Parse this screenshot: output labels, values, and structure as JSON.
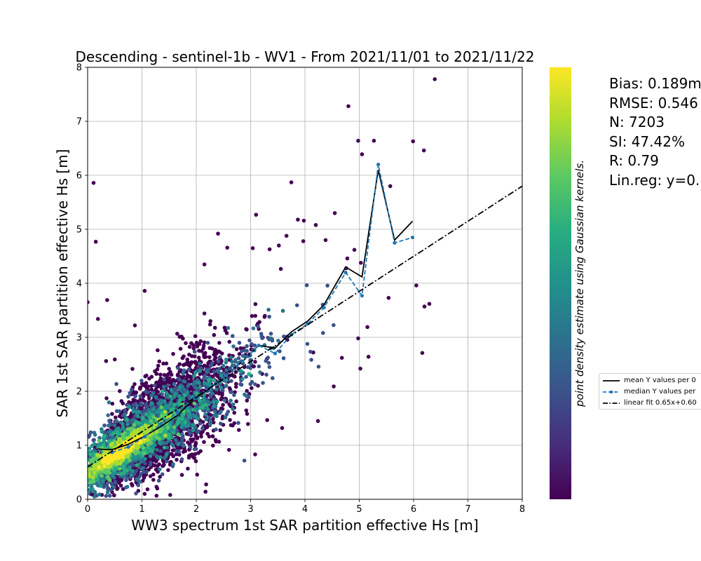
{
  "chart_data": {
    "type": "scatter",
    "title": "Descending - sentinel-1b - WV1 - From 2021/11/01 to 2021/11/22",
    "xlabel": "WW3 spectrum 1st SAR partition effective Hs [m]",
    "ylabel": "SAR 1st SAR partition effective Hs [m]",
    "xlim": [
      0,
      8
    ],
    "ylim": [
      0,
      8
    ],
    "x_ticks": [
      "0",
      "1",
      "2",
      "3",
      "4",
      "5",
      "6",
      "7",
      "8"
    ],
    "y_ticks": [
      "0",
      "1",
      "2",
      "3",
      "4",
      "5",
      "6",
      "7",
      "8"
    ],
    "grid": true,
    "colorbar_label": "point density estimate using Gaussian kernels.",
    "colormap": "viridis",
    "n_points": 7203,
    "outlier_points": [
      [
        6.39,
        7.78
      ],
      [
        4.8,
        7.28
      ],
      [
        4.98,
        6.64
      ],
      [
        5.05,
        6.39
      ],
      [
        5.27,
        6.64
      ],
      [
        5.99,
        6.63
      ],
      [
        6.19,
        6.46
      ],
      [
        3.75,
        5.87
      ],
      [
        0.11,
        5.86
      ],
      [
        5.57,
        5.8
      ],
      [
        0.15,
        4.77
      ],
      [
        3.87,
        5.18
      ],
      [
        3.98,
        5.16
      ],
      [
        3.66,
        4.88
      ],
      [
        3.97,
        4.78
      ],
      [
        4.55,
        5.3
      ],
      [
        4.2,
        5.08
      ],
      [
        3.1,
        5.27
      ],
      [
        2.57,
        4.66
      ],
      [
        3.04,
        4.65
      ],
      [
        3.35,
        4.63
      ],
      [
        4.78,
        4.46
      ],
      [
        4.91,
        4.62
      ],
      [
        6.05,
        3.96
      ],
      [
        6.29,
        3.62
      ],
      [
        5.54,
        3.73
      ],
      [
        6.2,
        3.57
      ],
      [
        6.16,
        2.71
      ],
      [
        5.15,
        3.19
      ],
      [
        5.02,
        2.42
      ],
      [
        4.24,
        1.45
      ],
      [
        4.68,
        2.62
      ],
      [
        4.53,
        2.09
      ],
      [
        1.05,
        3.86
      ],
      [
        0.0,
        3.65
      ],
      [
        0.36,
        3.69
      ],
      [
        0.19,
        3.34
      ],
      [
        2.15,
        4.35
      ],
      [
        1.92,
        2.65
      ],
      [
        0.5,
        2.59
      ],
      [
        0.87,
        3.22
      ],
      [
        0.34,
        2.56
      ],
      [
        2.17,
        0.14
      ],
      [
        1.05,
        0.1
      ],
      [
        0.08,
        0.09
      ],
      [
        2.7,
        1.41
      ],
      [
        3.58,
        1.32
      ],
      [
        1.6,
        1.82
      ],
      [
        2.4,
        4.92
      ],
      [
        3.52,
        4.7
      ],
      [
        4.76,
        4.28
      ],
      [
        4.38,
        4.8
      ],
      [
        5.17,
        2.64
      ],
      [
        4.98,
        2.98
      ],
      [
        5.03,
        4.38
      ]
    ],
    "density_cloud": {
      "peak": [
        0.62,
        0.9
      ],
      "slope": 0.67,
      "intercept": 0.53
    },
    "series": [
      {
        "name": "mean Y values per 0",
        "style": "solid",
        "color": "#000000",
        "x": [
          0.15,
          0.45,
          0.75,
          1.05,
          1.35,
          1.65,
          1.95,
          2.25,
          2.55,
          2.85,
          3.15,
          3.45,
          3.75,
          4.05,
          4.35,
          4.75,
          5.05,
          5.35,
          5.65,
          5.98
        ],
        "y": [
          0.93,
          0.92,
          1.02,
          1.17,
          1.35,
          1.55,
          1.85,
          2.05,
          2.3,
          2.55,
          2.85,
          2.8,
          3.1,
          3.3,
          3.6,
          4.3,
          4.12,
          6.1,
          4.8,
          5.15
        ]
      },
      {
        "name": "median Y values per",
        "style": "dashed",
        "color": "#1f77b4",
        "x": [
          0.45,
          0.75,
          1.05,
          1.35,
          1.65,
          1.95,
          2.25,
          2.55,
          2.85,
          3.15,
          3.45,
          3.75,
          4.05,
          4.35,
          4.75,
          5.05,
          5.35,
          5.65,
          5.98
        ],
        "y": [
          0.87,
          0.97,
          1.16,
          1.4,
          1.6,
          1.87,
          2.07,
          2.3,
          2.55,
          2.85,
          2.7,
          3.05,
          3.25,
          3.55,
          4.2,
          3.77,
          6.2,
          4.75,
          4.85
        ]
      },
      {
        "name": "linear fit 0.65x+0.60",
        "style": "dashdot",
        "color": "#000000",
        "x": [
          0,
          8
        ],
        "y": [
          0.6,
          5.8
        ]
      }
    ]
  },
  "stats": {
    "bias": "Bias: 0.189m",
    "rmse": "RMSE: 0.546",
    "n": "N: 7203",
    "si": "SI: 47.42%",
    "r": "R: 0.79",
    "linreg": "Lin.reg: y=0."
  },
  "legend": {
    "mean_label": "mean Y values per 0",
    "median_label": "median Y values per",
    "fit_label": "linear fit 0.65x+0.60"
  }
}
